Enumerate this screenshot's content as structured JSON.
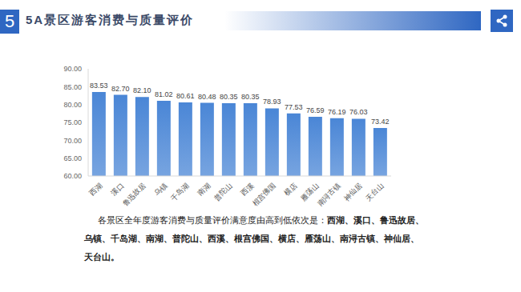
{
  "header": {
    "number": "5",
    "title": "5A景区游客消费与质量评价"
  },
  "chart_data": {
    "type": "bar",
    "categories": [
      "西湖",
      "溪口",
      "鲁迅故居",
      "乌镇",
      "千岛湖",
      "南湖",
      "普陀山",
      "西溪",
      "根宫佛国",
      "横店",
      "雁荡山",
      "南浔古镇",
      "神仙居",
      "天台山"
    ],
    "values": [
      83.53,
      82.7,
      82.1,
      81.02,
      80.61,
      80.48,
      80.35,
      80.35,
      78.93,
      77.53,
      76.59,
      76.19,
      76.03,
      73.42
    ],
    "value_labels": [
      "83.53",
      "82.70",
      "82.10",
      "81.02",
      "80.61",
      "80.48",
      "80.35",
      "80.35",
      "78.93",
      "77.53",
      "76.59",
      "76.19",
      "76.03",
      "73.42"
    ],
    "color": "#4a86d6",
    "ylim": [
      60,
      90
    ],
    "yticks": [
      {
        "value": 60,
        "label": "60.00"
      },
      {
        "value": 65,
        "label": "65.00"
      },
      {
        "value": 70,
        "label": "70.00"
      },
      {
        "value": 75,
        "label": "75.00"
      },
      {
        "value": 80,
        "label": "80.00"
      },
      {
        "value": 85,
        "label": "85.00"
      },
      {
        "value": 90,
        "label": "90.00"
      }
    ],
    "grid": false,
    "data_labels": true
  },
  "caption": {
    "text": "各景区全年度游客消费与质量评价满意度由高到低依次是：",
    "highlight": "西湖、溪口、鲁迅故居、乌镇、千岛湖、南湖、普陀山、西溪、根宫佛国、横店、雁荡山、南浔古镇、神仙居、天台山。"
  }
}
